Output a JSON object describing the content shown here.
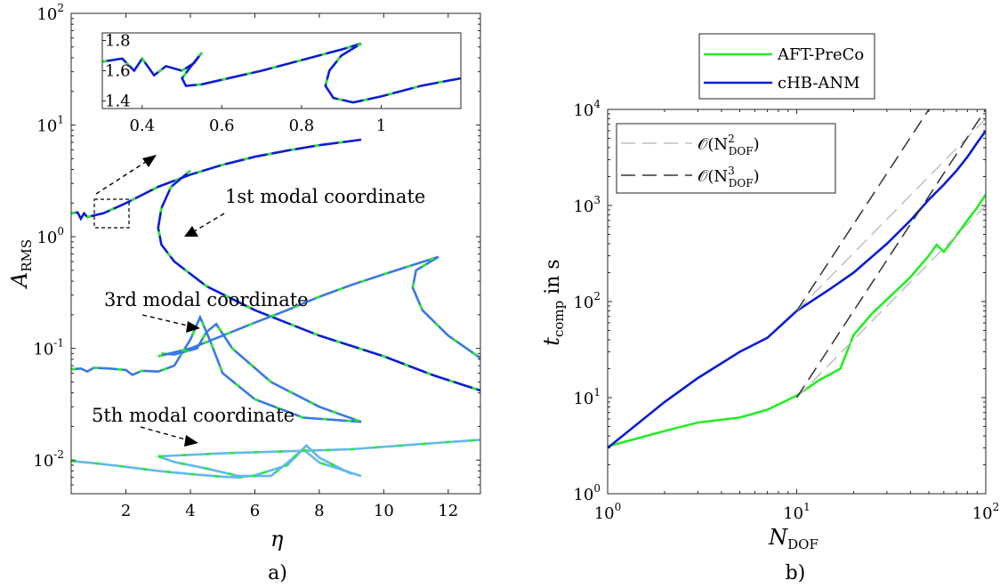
{
  "chart_data": [
    {
      "panel": "a)",
      "type": "line",
      "xlabel_main": "η",
      "ylabel_main": "A",
      "ylabel_sub": "RMS",
      "xlim": [
        0.3,
        13
      ],
      "ylim": [
        0.005,
        100
      ],
      "yscale": "log",
      "xticks": [
        "2",
        "4",
        "6",
        "8",
        "10",
        "12"
      ],
      "yticks": [
        {
          "base": "10",
          "exp": "-2",
          "value": 0.01
        },
        {
          "base": "10",
          "exp": "-1",
          "value": 0.1
        },
        {
          "base": "10",
          "exp": "0",
          "value": 1
        },
        {
          "base": "10",
          "exp": "1",
          "value": 10
        },
        {
          "base": "10",
          "exp": "2",
          "value": 100
        }
      ],
      "annotations": [
        "1st modal coordinate",
        "3rd modal coordinate",
        "5th modal coordinate"
      ],
      "colors": {
        "blue": "#0a1ed2",
        "green": "#22ee22",
        "mid": "#3a78e4",
        "light": "#62b8ee"
      },
      "series": [
        {
          "group": "1st",
          "x": [
            0.3,
            0.5,
            0.6,
            0.7,
            0.8,
            1.0,
            1.3,
            2.0,
            3.0,
            4.0,
            5.0,
            6.0,
            7.0,
            8.0,
            9.0,
            9.3
          ],
          "y": [
            1.62,
            1.65,
            1.45,
            1.62,
            1.5,
            1.55,
            1.62,
            2.0,
            2.8,
            3.6,
            4.4,
            5.2,
            5.9,
            6.6,
            7.2,
            7.4
          ]
        },
        {
          "group": "1st",
          "x": [
            4.0,
            3.4,
            3.1,
            3.0,
            3.1,
            3.5,
            4.5,
            6.0,
            8.0,
            10.0,
            11.5,
            13.0
          ],
          "y": [
            3.9,
            2.8,
            1.8,
            1.2,
            0.85,
            0.6,
            0.36,
            0.22,
            0.13,
            0.085,
            0.058,
            0.042
          ]
        },
        {
          "group": "3rd",
          "x": [
            0.3,
            0.6,
            0.8,
            1.0,
            1.5,
            2.0,
            2.2,
            2.5,
            3.0,
            3.5,
            4.0,
            4.3,
            4.6,
            5.0,
            6.0,
            7.5,
            9.3
          ],
          "y": [
            0.065,
            0.066,
            0.062,
            0.067,
            0.066,
            0.064,
            0.058,
            0.063,
            0.062,
            0.07,
            0.12,
            0.19,
            0.12,
            0.06,
            0.035,
            0.024,
            0.022
          ]
        },
        {
          "group": "3rd",
          "x": [
            3.1,
            3.5,
            4.2,
            4.5,
            4.8,
            5.3,
            6.5,
            8.0,
            9.3
          ],
          "y": [
            0.09,
            0.088,
            0.1,
            0.14,
            0.165,
            0.1,
            0.05,
            0.03,
            0.022
          ]
        },
        {
          "group": "3rd",
          "x": [
            3.0,
            4.0,
            5.0,
            6.0,
            7.0,
            8.0,
            9.0,
            10.0,
            11.0,
            11.7,
            11.0,
            10.9,
            11.2,
            12.0,
            13.0
          ],
          "y": [
            0.085,
            0.1,
            0.13,
            0.17,
            0.22,
            0.29,
            0.37,
            0.46,
            0.57,
            0.66,
            0.5,
            0.35,
            0.22,
            0.13,
            0.082
          ]
        },
        {
          "group": "5th",
          "x": [
            0.3,
            1.0,
            2.0,
            3.0,
            4.0,
            5.0,
            5.5,
            6.0,
            7.0,
            7.5,
            8.0,
            9.3
          ],
          "y": [
            0.0098,
            0.0094,
            0.0087,
            0.008,
            0.0075,
            0.0071,
            0.007,
            0.0073,
            0.009,
            0.0125,
            0.0095,
            0.0072
          ]
        },
        {
          "group": "5th",
          "x": [
            3.0,
            3.5,
            4.5,
            5.5,
            6.5,
            7.2,
            7.6,
            8.0,
            9.0
          ],
          "y": [
            0.0108,
            0.0096,
            0.0084,
            0.0072,
            0.0072,
            0.0105,
            0.0135,
            0.0105,
            0.0075
          ]
        },
        {
          "group": "5th",
          "x": [
            3.0,
            5.0,
            7.0,
            9.0,
            11.0,
            13.0
          ],
          "y": [
            0.0108,
            0.0115,
            0.012,
            0.0125,
            0.0138,
            0.0152
          ]
        }
      ],
      "inset": {
        "xlim": [
          0.3,
          1.2
        ],
        "ylim": [
          1.35,
          1.85
        ],
        "xticks": [
          "0.4",
          "0.6",
          "0.8",
          "1"
        ],
        "yticks": [
          "1.4",
          "1.6",
          "1.8"
        ],
        "series": [
          {
            "x": [
              0.3,
              0.35,
              0.38,
              0.4,
              0.43,
              0.46,
              0.5,
              0.53,
              0.55
            ],
            "y": [
              1.66,
              1.68,
              1.6,
              1.68,
              1.57,
              1.63,
              1.6,
              1.65,
              1.72
            ]
          },
          {
            "x": [
              0.55,
              0.52,
              0.5,
              0.51,
              0.55,
              0.6,
              0.7,
              0.8,
              0.9,
              0.95
            ],
            "y": [
              1.72,
              1.62,
              1.55,
              1.5,
              1.51,
              1.54,
              1.6,
              1.67,
              1.74,
              1.78
            ]
          },
          {
            "x": [
              0.95,
              0.9,
              0.87,
              0.86,
              0.88,
              0.93,
              1.0,
              1.1,
              1.2
            ],
            "y": [
              1.78,
              1.7,
              1.6,
              1.5,
              1.42,
              1.39,
              1.43,
              1.5,
              1.55
            ]
          }
        ]
      }
    },
    {
      "panel": "b)",
      "type": "line",
      "xlabel_main": "N",
      "xlabel_sub": "DOF",
      "ylabel_main": "t",
      "ylabel_sub": "comp",
      "ylabel_rest": " in s",
      "xscale": "log",
      "yscale": "log",
      "xlim": [
        1,
        100
      ],
      "ylim": [
        1,
        10000
      ],
      "xticks": [
        {
          "base": "10",
          "exp": "0",
          "value": 1
        },
        {
          "base": "10",
          "exp": "1",
          "value": 10
        },
        {
          "base": "10",
          "exp": "2",
          "value": 100
        }
      ],
      "yticks": [
        {
          "base": "10",
          "exp": "0",
          "value": 1
        },
        {
          "base": "10",
          "exp": "1",
          "value": 10
        },
        {
          "base": "10",
          "exp": "2",
          "value": 100
        },
        {
          "base": "10",
          "exp": "3",
          "value": 1000
        },
        {
          "base": "10",
          "exp": "4",
          "value": 10000
        }
      ],
      "legend_outer": {
        "placement": "top",
        "entries": [
          {
            "label": "AFT-PreCo",
            "color": "#22ee22"
          },
          {
            "label": "cHB-ANM",
            "color": "#0a1ed2"
          }
        ]
      },
      "legend_inner": {
        "placement": "top-left",
        "entries": [
          {
            "label": "𝒪(N",
            "sub": "DOF",
            "sup": "2",
            "close": ")",
            "color": "#bfbfbf"
          },
          {
            "label": "𝒪(N",
            "sub": "DOF",
            "sup": "3",
            "close": ")",
            "color": "#333333"
          }
        ]
      },
      "series": [
        {
          "name": "AFT-PreCo",
          "x": [
            1,
            2,
            3,
            5,
            7,
            9,
            10,
            13,
            17,
            20,
            25,
            30,
            40,
            50,
            55,
            60,
            70,
            80,
            90,
            100
          ],
          "y": [
            3.1,
            4.5,
            5.5,
            6.2,
            7.5,
            9.5,
            10.5,
            15,
            20,
            45,
            75,
            105,
            180,
            300,
            390,
            330,
            490,
            700,
            950,
            1300
          ]
        },
        {
          "name": "cHB-ANM",
          "x": [
            1,
            2,
            3,
            5,
            7,
            10,
            15,
            20,
            30,
            40,
            50,
            60,
            70,
            80,
            90,
            100
          ],
          "y": [
            3.0,
            9,
            16,
            30,
            42,
            80,
            135,
            200,
            400,
            700,
            1150,
            1650,
            2300,
            3200,
            4500,
            6000
          ]
        },
        {
          "name": "O2",
          "x": [
            10,
            100
          ],
          "y": [
            80,
            8000
          ]
        },
        {
          "name": "O2b",
          "x": [
            10,
            100
          ],
          "y": [
            10,
            1000
          ]
        },
        {
          "name": "O3",
          "x": [
            10,
            100
          ],
          "y": [
            80,
            80000
          ]
        },
        {
          "name": "O3b",
          "x": [
            10,
            100
          ],
          "y": [
            10,
            10000
          ]
        }
      ]
    }
  ]
}
